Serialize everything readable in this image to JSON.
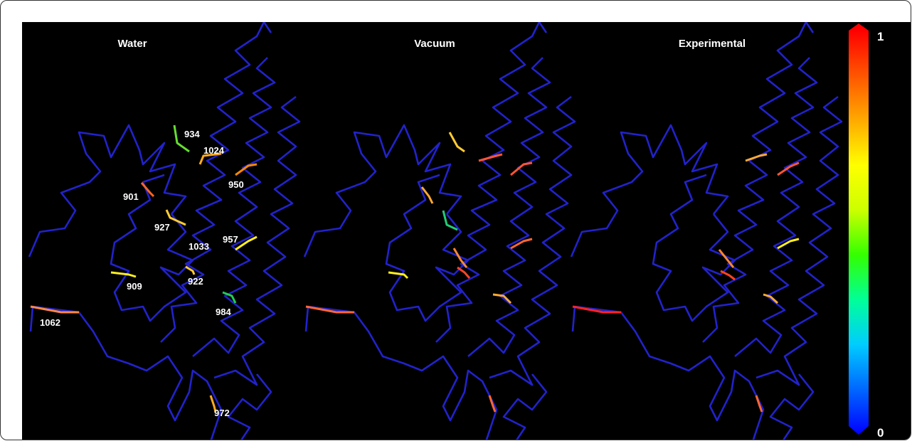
{
  "panels": [
    {
      "title": "Water"
    },
    {
      "title": "Vacuum"
    },
    {
      "title": "Experimental"
    }
  ],
  "residue_labels": [
    "934",
    "1024",
    "950",
    "901",
    "927",
    "957",
    "1033",
    "909",
    "922",
    "984",
    "1062",
    "972"
  ],
  "colorbar": {
    "max_label": "1",
    "min_label": "0",
    "stops": [
      "#0000ff",
      "#0066ff",
      "#00ccff",
      "#00ff99",
      "#33ff00",
      "#ccff00",
      "#ffff00",
      "#ffaa00",
      "#ff5500",
      "#ff0000"
    ]
  },
  "colors": {
    "background": "#000000",
    "backbone": "#2222cc"
  }
}
